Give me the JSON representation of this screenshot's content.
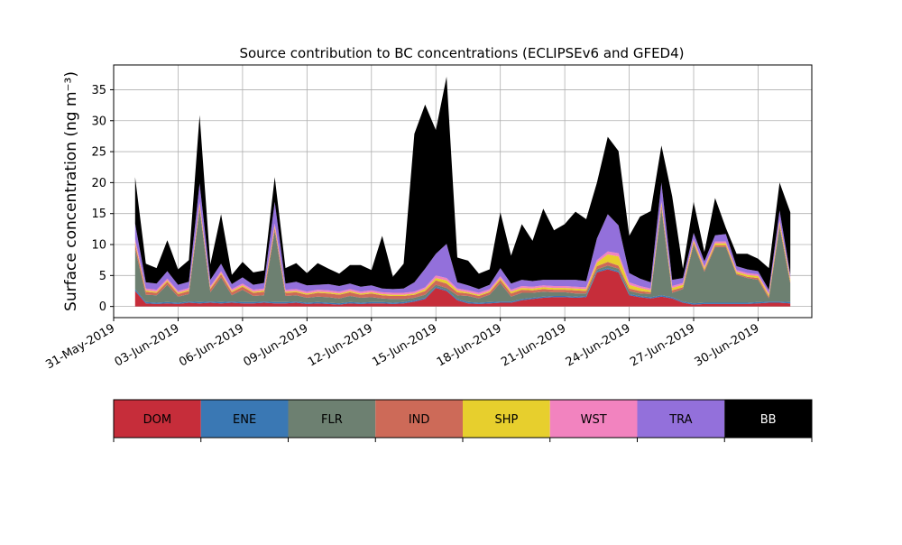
{
  "chart_data": {
    "type": "area",
    "stacked": true,
    "title": "Source contribution to BC concentrations (ECLIPSEv6 and GFED4)",
    "ylabel": "Surface concentration (ng m⁻³)",
    "xlabel": "",
    "x_start": "2019-06-01",
    "x_step_days": 0.5,
    "x": [
      "2019-06-01",
      "2019-06-01 12:00",
      "2019-06-02",
      "2019-06-02 12:00",
      "2019-06-03",
      "2019-06-03 12:00",
      "2019-06-04",
      "2019-06-04 12:00",
      "2019-06-05",
      "2019-06-05 12:00",
      "2019-06-06",
      "2019-06-06 12:00",
      "2019-06-07",
      "2019-06-07 12:00",
      "2019-06-08",
      "2019-06-08 12:00",
      "2019-06-09",
      "2019-06-09 12:00",
      "2019-06-10",
      "2019-06-10 12:00",
      "2019-06-11",
      "2019-06-11 12:00",
      "2019-06-12",
      "2019-06-12 12:00",
      "2019-06-13",
      "2019-06-13 12:00",
      "2019-06-14",
      "2019-06-14 12:00",
      "2019-06-15",
      "2019-06-15 12:00",
      "2019-06-16",
      "2019-06-16 12:00",
      "2019-06-17",
      "2019-06-17 12:00",
      "2019-06-18",
      "2019-06-18 12:00",
      "2019-06-19",
      "2019-06-19 12:00",
      "2019-06-20",
      "2019-06-20 12:00",
      "2019-06-21",
      "2019-06-21 12:00",
      "2019-06-22",
      "2019-06-22 12:00",
      "2019-06-23",
      "2019-06-23 12:00",
      "2019-06-24",
      "2019-06-24 12:00",
      "2019-06-25",
      "2019-06-25 12:00",
      "2019-06-26",
      "2019-06-26 12:00",
      "2019-06-27",
      "2019-06-27 12:00",
      "2019-06-28",
      "2019-06-28 12:00",
      "2019-06-29",
      "2019-06-29 12:00",
      "2019-06-30",
      "2019-06-30 12:00",
      "2019-07-01",
      "2019-07-01 12:00"
    ],
    "series": [
      {
        "name": "DOM",
        "color": "#c62d3a",
        "values": [
          2.5,
          0.5,
          0.4,
          0.5,
          0.4,
          0.6,
          0.5,
          0.6,
          0.5,
          0.6,
          0.5,
          0.5,
          0.6,
          0.5,
          0.5,
          0.6,
          0.4,
          0.5,
          0.4,
          0.3,
          0.5,
          0.4,
          0.5,
          0.5,
          0.4,
          0.5,
          0.8,
          1.2,
          3.0,
          2.5,
          1.0,
          0.5,
          0.4,
          0.5,
          0.6,
          0.6,
          1.0,
          1.2,
          1.4,
          1.5,
          1.5,
          1.4,
          1.5,
          5.5,
          6.0,
          5.5,
          1.8,
          1.5,
          1.3,
          1.6,
          1.3,
          0.6,
          0.3,
          0.4,
          0.4,
          0.4,
          0.4,
          0.4,
          0.5,
          0.6,
          0.6,
          0.5
        ]
      },
      {
        "name": "ENE",
        "color": "#3a78b4",
        "values": [
          0.3,
          0.2,
          0.2,
          0.2,
          0.2,
          0.2,
          0.2,
          0.2,
          0.2,
          0.2,
          0.2,
          0.2,
          0.2,
          0.2,
          0.2,
          0.2,
          0.2,
          0.2,
          0.2,
          0.2,
          0.2,
          0.2,
          0.2,
          0.2,
          0.2,
          0.2,
          0.2,
          0.2,
          0.2,
          0.2,
          0.2,
          0.2,
          0.2,
          0.2,
          0.2,
          0.2,
          0.2,
          0.2,
          0.2,
          0.2,
          0.2,
          0.2,
          0.2,
          0.2,
          0.2,
          0.2,
          0.2,
          0.2,
          0.2,
          0.2,
          0.2,
          0.2,
          0.2,
          0.2,
          0.2,
          0.2,
          0.2,
          0.2,
          0.2,
          0.2,
          0.2,
          0.2
        ]
      },
      {
        "name": "FLR",
        "color": "#6d8071",
        "values": [
          6.5,
          1.2,
          1.2,
          2.8,
          1.0,
          1.2,
          15.0,
          1.5,
          4.0,
          1.0,
          2.0,
          1.0,
          1.0,
          11.5,
          1.0,
          1.0,
          0.8,
          0.9,
          0.9,
          0.8,
          1.0,
          0.8,
          0.8,
          0.6,
          0.6,
          0.5,
          0.4,
          0.5,
          0.3,
          0.3,
          0.6,
          1.0,
          0.7,
          1.2,
          3.0,
          0.8,
          1.0,
          0.8,
          0.8,
          0.6,
          0.6,
          0.5,
          0.4,
          0.3,
          0.4,
          0.4,
          0.5,
          0.4,
          0.5,
          14.0,
          0.7,
          2.0,
          9.5,
          5.0,
          9.0,
          9.0,
          4.5,
          4.0,
          3.6,
          0.5,
          12.0,
          3.0
        ]
      },
      {
        "name": "IND",
        "color": "#cd6a58",
        "values": [
          0.8,
          0.5,
          0.4,
          0.5,
          0.4,
          0.5,
          0.5,
          0.5,
          0.5,
          0.5,
          0.5,
          0.5,
          0.6,
          0.5,
          0.5,
          0.5,
          0.5,
          0.6,
          0.6,
          0.6,
          0.6,
          0.5,
          0.6,
          0.5,
          0.5,
          0.5,
          0.5,
          0.6,
          0.7,
          0.7,
          0.5,
          0.4,
          0.4,
          0.4,
          0.5,
          0.5,
          0.5,
          0.4,
          0.4,
          0.4,
          0.4,
          0.5,
          0.4,
          0.5,
          0.6,
          0.5,
          0.4,
          0.4,
          0.3,
          0.5,
          0.4,
          0.3,
          0.3,
          0.3,
          0.3,
          0.3,
          0.2,
          0.2,
          0.3,
          0.3,
          0.4,
          0.3
        ]
      },
      {
        "name": "SHP",
        "color": "#e7cf2d",
        "values": [
          0.3,
          0.2,
          0.2,
          0.2,
          0.2,
          0.2,
          0.3,
          0.2,
          0.2,
          0.2,
          0.2,
          0.2,
          0.2,
          0.3,
          0.2,
          0.2,
          0.2,
          0.2,
          0.2,
          0.2,
          0.2,
          0.2,
          0.2,
          0.2,
          0.2,
          0.2,
          0.2,
          0.3,
          0.4,
          0.5,
          0.3,
          0.2,
          0.2,
          0.2,
          0.3,
          0.3,
          0.3,
          0.3,
          0.3,
          0.3,
          0.3,
          0.3,
          0.3,
          0.6,
          1.2,
          1.5,
          0.6,
          0.5,
          0.3,
          0.4,
          0.4,
          0.4,
          0.3,
          0.3,
          0.3,
          0.3,
          0.3,
          0.3,
          0.3,
          0.3,
          0.4,
          0.4
        ]
      },
      {
        "name": "WST",
        "color": "#f283bf",
        "values": [
          0.5,
          0.3,
          0.3,
          0.3,
          0.3,
          0.3,
          0.4,
          0.3,
          0.3,
          0.3,
          0.3,
          0.3,
          0.3,
          0.4,
          0.3,
          0.3,
          0.3,
          0.3,
          0.3,
          0.3,
          0.3,
          0.3,
          0.3,
          0.3,
          0.3,
          0.3,
          0.3,
          0.3,
          0.4,
          0.4,
          0.3,
          0.3,
          0.3,
          0.3,
          0.3,
          0.3,
          0.3,
          0.3,
          0.3,
          0.3,
          0.3,
          0.3,
          0.3,
          0.4,
          0.5,
          0.5,
          0.4,
          0.3,
          0.3,
          0.3,
          0.3,
          0.3,
          0.3,
          0.3,
          0.3,
          0.3,
          0.3,
          0.3,
          0.3,
          0.3,
          0.4,
          0.3
        ]
      },
      {
        "name": "TRA",
        "color": "#9370db",
        "values": [
          2.5,
          1.0,
          1.0,
          1.2,
          1.0,
          1.0,
          3.0,
          1.0,
          1.2,
          0.8,
          1.0,
          0.8,
          0.9,
          3.5,
          1.0,
          1.2,
          1.0,
          0.8,
          1.0,
          0.9,
          0.9,
          0.8,
          0.8,
          0.6,
          0.6,
          0.7,
          1.5,
          3.0,
          3.5,
          5.5,
          1.0,
          0.8,
          0.6,
          0.7,
          1.3,
          1.0,
          1.0,
          0.9,
          0.9,
          1.0,
          1.0,
          1.1,
          1.0,
          3.5,
          6.0,
          4.5,
          1.5,
          1.2,
          1.0,
          3.0,
          1.0,
          0.8,
          1.0,
          0.8,
          1.0,
          1.2,
          0.6,
          0.6,
          0.5,
          0.5,
          1.5,
          0.5
        ]
      },
      {
        "name": "BB",
        "color": "#000000",
        "values": [
          7.5,
          3.0,
          2.5,
          5.0,
          2.5,
          3.5,
          11.0,
          2.5,
          8.0,
          1.5,
          2.5,
          2.0,
          2.0,
          4.0,
          2.5,
          3.0,
          2.0,
          3.5,
          2.5,
          2.0,
          3.0,
          3.5,
          2.5,
          8.5,
          2.0,
          4.0,
          24.0,
          26.5,
          20.0,
          27.0,
          4.0,
          4.0,
          2.5,
          2.5,
          9.0,
          4.5,
          9.0,
          6.5,
          11.5,
          8.0,
          9.0,
          11.0,
          10.0,
          9.0,
          12.5,
          12.0,
          6.0,
          10.0,
          11.5,
          6.0,
          13.5,
          1.5,
          5.0,
          1.5,
          6.0,
          1.0,
          2.0,
          2.5,
          2.0,
          3.5,
          4.5,
          10.0
        ]
      }
    ],
    "ylim": [
      -1.8,
      39
    ],
    "yticks": [
      0,
      5,
      10,
      15,
      20,
      25,
      30,
      35
    ],
    "xlim": [
      "2019-05-31 00:00",
      "2019-07-02 12:00"
    ],
    "xticks": [
      "2019-05-31",
      "2019-06-03",
      "2019-06-06",
      "2019-06-09",
      "2019-06-12",
      "2019-06-15",
      "2019-06-18",
      "2019-06-21",
      "2019-06-24",
      "2019-06-27",
      "2019-06-30"
    ],
    "xtick_labels": [
      "31-May-2019",
      "03-Jun-2019",
      "06-Jun-2019",
      "09-Jun-2019",
      "12-Jun-2019",
      "15-Jun-2019",
      "18-Jun-2019",
      "21-Jun-2019",
      "24-Jun-2019",
      "27-Jun-2019",
      "30-Jun-2019"
    ],
    "grid": true,
    "legend": "colorbar-below"
  }
}
